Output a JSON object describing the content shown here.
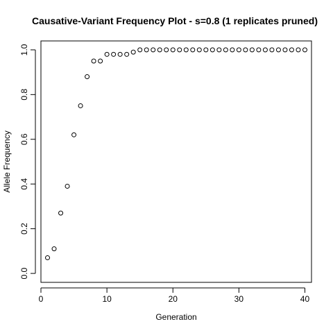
{
  "chart_data": {
    "type": "scatter",
    "title": "Causative-Variant Frequency Plot - s=0.8 (1 replicates pruned)",
    "xlabel": "Generation",
    "ylabel": "Allele Frequency",
    "xlim": [
      0,
      41
    ],
    "ylim": [
      -0.04,
      1.04
    ],
    "xticks": [
      0,
      10,
      20,
      30,
      40
    ],
    "yticks": [
      0.0,
      0.2,
      0.4,
      0.6,
      0.8,
      1.0
    ],
    "xtick_labels": [
      "0",
      "10",
      "20",
      "30",
      "40"
    ],
    "ytick_labels": [
      "0.0",
      "0.2",
      "0.4",
      "0.6",
      "0.8",
      "1.0"
    ],
    "grid": false,
    "marker": "open-circle",
    "point_color": "#000000",
    "series": [
      {
        "x": [
          1,
          2,
          3,
          4,
          5,
          6,
          7,
          8,
          9,
          10,
          11,
          12,
          13,
          14,
          15,
          16,
          17,
          18,
          19,
          20,
          21,
          22,
          23,
          24,
          25,
          26,
          27,
          28,
          29,
          30,
          31,
          32,
          33,
          34,
          35,
          36,
          37,
          38,
          39,
          40
        ],
        "y": [
          0.07,
          0.11,
          0.27,
          0.39,
          0.62,
          0.75,
          0.88,
          0.95,
          0.95,
          0.98,
          0.98,
          0.98,
          0.98,
          0.99,
          1.0,
          1.0,
          1.0,
          1.0,
          1.0,
          1.0,
          1.0,
          1.0,
          1.0,
          1.0,
          1.0,
          1.0,
          1.0,
          1.0,
          1.0,
          1.0,
          1.0,
          1.0,
          1.0,
          1.0,
          1.0,
          1.0,
          1.0,
          1.0,
          1.0,
          1.0
        ]
      }
    ]
  }
}
